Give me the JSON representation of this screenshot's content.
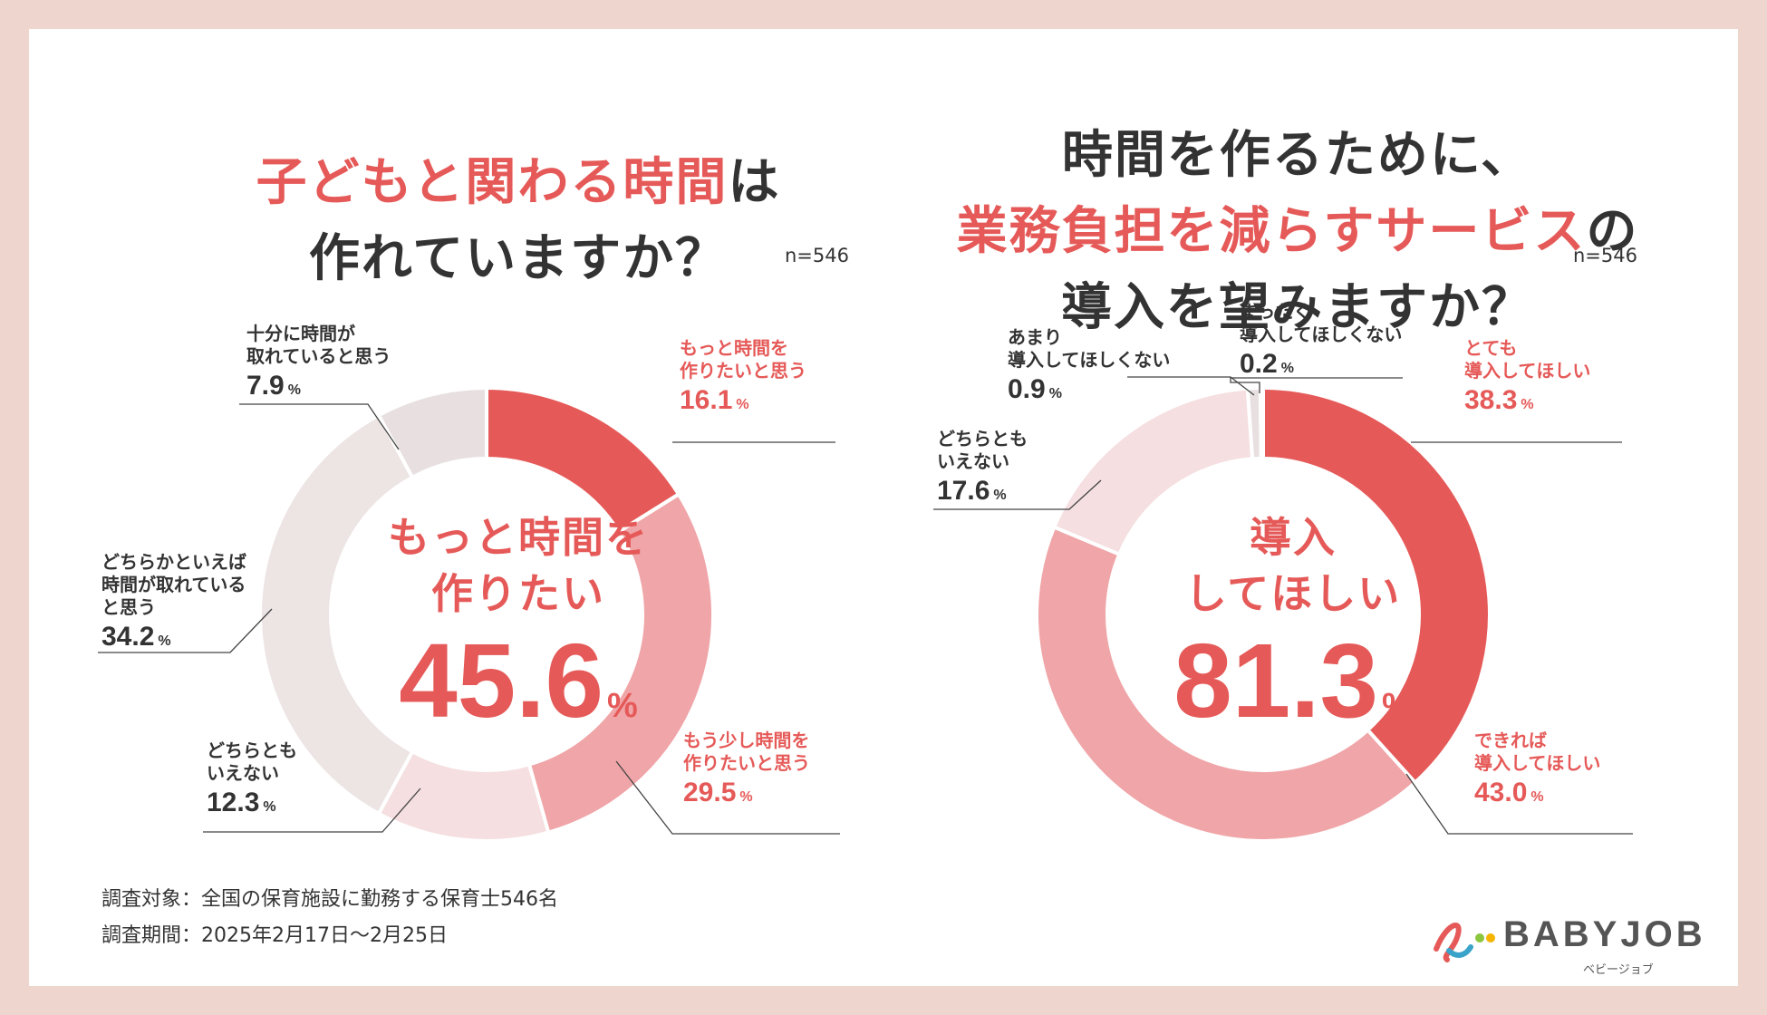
{
  "colors": {
    "accent": "#e55a58",
    "medium": "#f0a5a8",
    "light": "#f5dfe0",
    "pale": "#ede4e4",
    "grey": "#e8e0e0",
    "background": "#eed6cf"
  },
  "left": {
    "title_red": "子どもと関わる時間",
    "title_rest": "は",
    "title_line2": "作れていますか？",
    "n": "n=546",
    "center_line1": "もっと時間を",
    "center_line2": "作りたい",
    "center_value": "45.6",
    "center_unit": "%"
  },
  "right": {
    "title_line1": "時間を作るために、",
    "title_red": "業務負担を減らすサービス",
    "title_rest": "の",
    "title_line3": "導入を望みますか？",
    "n": "n=546",
    "center_line1": "導入",
    "center_line2": "してほしい",
    "center_value": "81.3",
    "center_unit": "%"
  },
  "chart_data": [
    {
      "type": "pie",
      "title": "子どもと関わる時間は作れていますか？",
      "unit": "%",
      "categories": [
        "もっと時間を作りたいと思う",
        "もう少し時間を作りたいと思う",
        "どちらともいえない",
        "どちらかといえば時間が取れていると思う",
        "十分に時間が取れていると思う"
      ],
      "values": [
        16.1,
        29.5,
        12.3,
        34.2,
        7.9
      ],
      "labels": {
        "l0": [
          "もっと時間を",
          "作りたいと思う"
        ],
        "l1": [
          "もう少し時間を",
          "作りたいと思う"
        ],
        "l2": [
          "どちらとも",
          "いえない"
        ],
        "l3": [
          "どちらかといえば",
          "時間が取れている",
          "と思う"
        ],
        "l4": [
          "十分に時間が",
          "取れていると思う"
        ]
      },
      "values_text": {
        "l0": "16.1",
        "l1": "29.5",
        "l2": "12.3",
        "l3": "34.2",
        "l4": "7.9"
      }
    },
    {
      "type": "pie",
      "title": "時間を作るために、業務負担を減らすサービスの導入を望みますか？",
      "unit": "%",
      "categories": [
        "とても導入してほしい",
        "できれば導入してほしい",
        "どちらともいえない",
        "あまり導入してほしくない",
        "まったく導入してほしくない"
      ],
      "values": [
        38.3,
        43.0,
        17.6,
        0.9,
        0.2
      ],
      "labels": {
        "r0": [
          "とても",
          "導入してほしい"
        ],
        "r1": [
          "できれば",
          "導入してほしい"
        ],
        "r2": [
          "どちらとも",
          "いえない"
        ],
        "r3": [
          "あまり",
          "導入してほしくない"
        ],
        "r4": [
          "まったく",
          "導入してほしくない"
        ]
      },
      "values_text": {
        "r0": "38.3",
        "r1": "43.0",
        "r2": "17.6",
        "r3": "0.9",
        "r4": "0.2"
      }
    }
  ],
  "footer": {
    "target": "調査対象：全国の保育施設に勤務する保育士546名",
    "period": "調査期間：2025年2月17日〜2月25日"
  },
  "logo": {
    "brand": "BABYJOB",
    "kana": "ベビージョブ"
  }
}
